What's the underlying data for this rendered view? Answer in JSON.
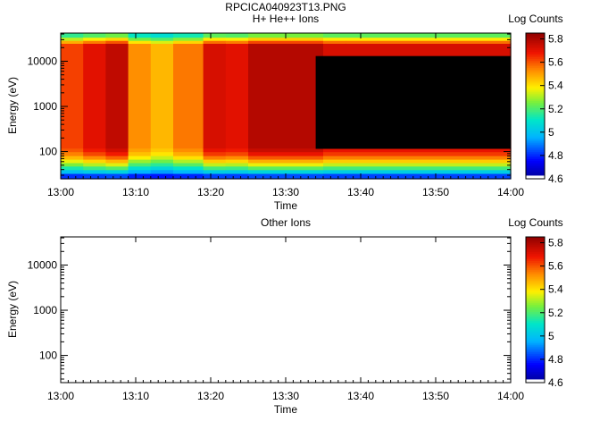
{
  "figure": {
    "file_title": "RPCICA040923T13.PNG"
  },
  "chart_data": [
    {
      "type": "heatmap",
      "title": "H+ He++ Ions",
      "xlabel": "Time",
      "ylabel": "Energy (eV)",
      "x_ticks": [
        "13:00",
        "13:10",
        "13:20",
        "13:30",
        "13:40",
        "13:50",
        "14:00"
      ],
      "x_range": [
        "13:00",
        "14:00"
      ],
      "y_scale": "log",
      "y_ticks": [
        "100",
        "1000",
        "10000"
      ],
      "y_range": [
        25,
        42000
      ],
      "colorbar": {
        "label": "Log Counts",
        "ticks": [
          "4.6",
          "4.8",
          "5",
          "5.2",
          "5.4",
          "5.6",
          "5.8"
        ],
        "range": [
          4.6,
          5.85
        ]
      },
      "columns": [
        {
          "t0": "13:00",
          "t1": "13:03",
          "peak": 5.62
        },
        {
          "t0": "13:03",
          "t1": "13:06",
          "peak": 5.7
        },
        {
          "t0": "13:06",
          "t1": "13:09",
          "peak": 5.76
        },
        {
          "t0": "13:09",
          "t1": "13:12",
          "peak": 5.52
        },
        {
          "t0": "13:12",
          "t1": "13:15",
          "peak": 5.46
        },
        {
          "t0": "13:15",
          "t1": "13:19",
          "peak": 5.55
        },
        {
          "t0": "13:19",
          "t1": "13:22",
          "peak": 5.72
        },
        {
          "t0": "13:22",
          "t1": "13:25",
          "peak": 5.7
        },
        {
          "t0": "13:25",
          "t1": "13:35",
          "peak": 5.78
        },
        {
          "t0": "13:35",
          "t1": "13:38",
          "peak": 5.72
        },
        {
          "t0": "13:38",
          "t1": "14:00",
          "peak": 5.72
        }
      ],
      "saturated_region": {
        "t0": "13:34",
        "t1": "14:00",
        "e_min": 115,
        "e_max": 13000,
        "color": "#000000"
      }
    },
    {
      "type": "heatmap",
      "title": "Other Ions",
      "xlabel": "Time",
      "ylabel": "Energy (eV)",
      "x_ticks": [
        "13:00",
        "13:10",
        "13:20",
        "13:30",
        "13:40",
        "13:50",
        "14:00"
      ],
      "x_range": [
        "13:00",
        "14:00"
      ],
      "y_scale": "log",
      "y_ticks": [
        "100",
        "1000",
        "10000"
      ],
      "y_range": [
        25,
        42000
      ],
      "colorbar": {
        "label": "Log Counts",
        "ticks": [
          "4.6",
          "4.8",
          "5",
          "5.2",
          "5.4",
          "5.6",
          "5.8"
        ],
        "range": [
          4.6,
          5.85
        ]
      },
      "columns": []
    }
  ]
}
